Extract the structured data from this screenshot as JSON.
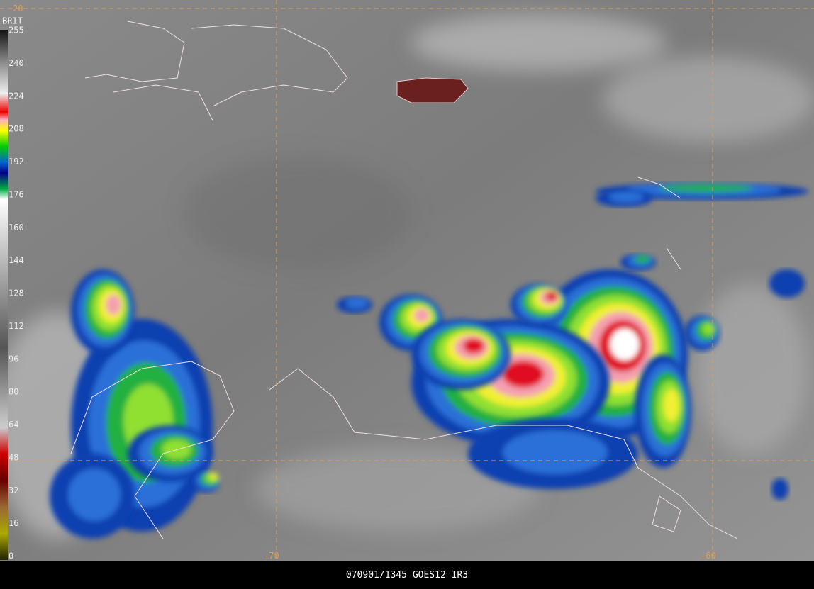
{
  "colorbar": {
    "title": "BRIT",
    "labels": [
      255,
      240,
      224,
      208,
      192,
      176,
      160,
      144,
      128,
      112,
      96,
      80,
      64,
      48,
      32,
      16,
      0
    ]
  },
  "grid_labels": {
    "lat_top": "20",
    "lon_left": "-70",
    "lon_right": "-60"
  },
  "footer": {
    "caption": "070901/1345 GOES12  IR3"
  }
}
